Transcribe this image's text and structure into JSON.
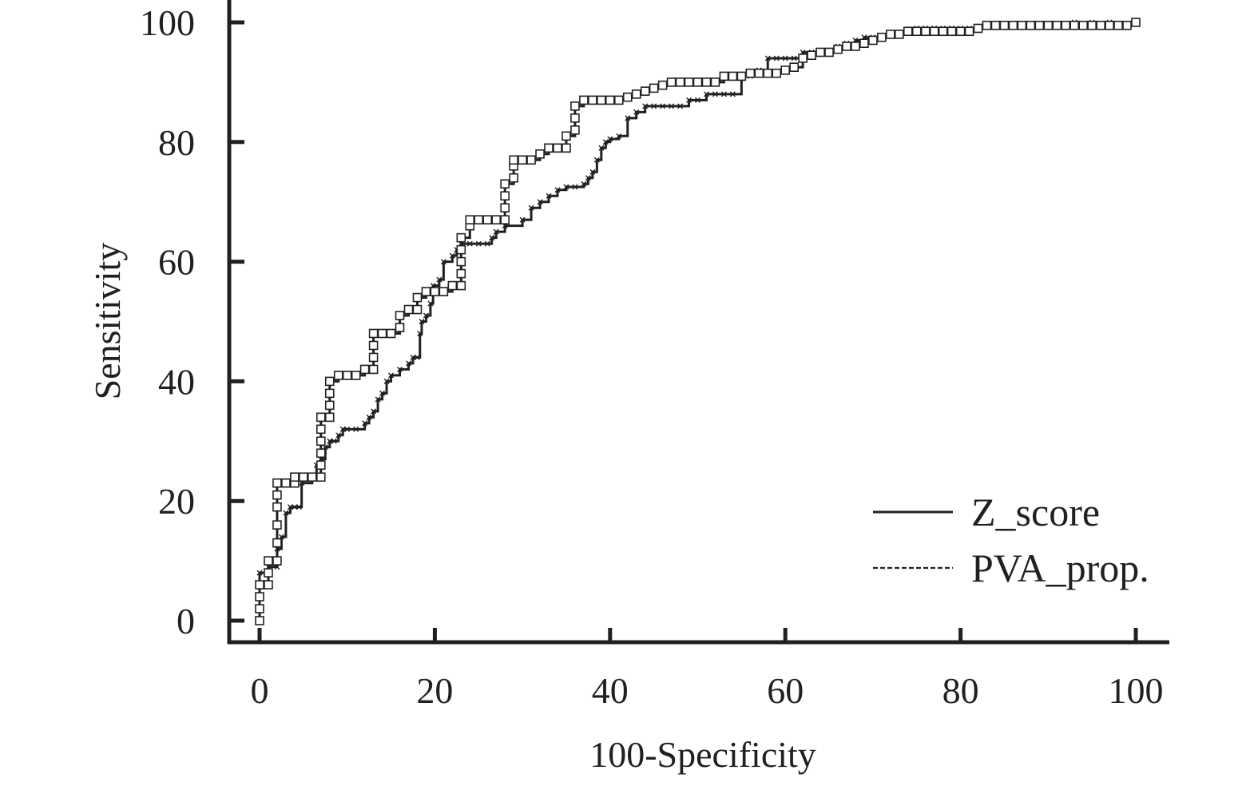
{
  "chart_data": {
    "type": "line",
    "title": "",
    "xlabel": "100-Specificity",
    "ylabel": "Sensitivity",
    "xlim": [
      0,
      100
    ],
    "ylim": [
      0,
      100
    ],
    "grid": false,
    "legend_position": "bottom-right",
    "x_ticks": [
      "0",
      "20",
      "40",
      "60",
      "80",
      "100"
    ],
    "y_ticks": [
      "0",
      "20",
      "40",
      "60",
      "80",
      "100"
    ],
    "series": [
      {
        "name": "Z_score",
        "line_style": "solid",
        "marker": "x",
        "color": "#231f20",
        "points": [
          [
            0,
            0
          ],
          [
            0,
            8
          ],
          [
            1,
            8
          ],
          [
            1,
            9
          ],
          [
            2,
            9
          ],
          [
            2,
            12
          ],
          [
            2.5,
            14
          ],
          [
            3,
            18
          ],
          [
            3.5,
            19
          ],
          [
            4,
            19
          ],
          [
            4.5,
            19
          ],
          [
            4.8,
            23
          ],
          [
            6,
            24
          ],
          [
            6.5,
            26
          ],
          [
            7,
            27
          ],
          [
            7.5,
            29
          ],
          [
            8,
            30
          ],
          [
            8.5,
            30
          ],
          [
            9,
            31
          ],
          [
            9.5,
            32
          ],
          [
            10,
            32
          ],
          [
            11,
            32
          ],
          [
            12,
            33
          ],
          [
            12.5,
            34
          ],
          [
            13,
            35
          ],
          [
            13.5,
            37
          ],
          [
            14,
            38
          ],
          [
            14.5,
            40
          ],
          [
            15,
            41
          ],
          [
            16,
            42
          ],
          [
            17,
            43
          ],
          [
            17.5,
            44
          ],
          [
            18,
            44
          ],
          [
            18.3,
            48
          ],
          [
            18.5,
            50
          ],
          [
            19,
            51
          ],
          [
            19.5,
            53
          ],
          [
            19.8,
            56
          ],
          [
            20.5,
            57
          ],
          [
            21,
            60
          ],
          [
            22,
            61
          ],
          [
            22.5,
            62
          ],
          [
            23,
            63
          ],
          [
            24,
            63
          ],
          [
            25,
            63
          ],
          [
            26,
            63
          ],
          [
            26.5,
            64
          ],
          [
            27,
            65
          ],
          [
            28,
            66
          ],
          [
            30,
            67
          ],
          [
            31,
            69
          ],
          [
            32,
            70
          ],
          [
            33,
            71
          ],
          [
            34,
            72
          ],
          [
            35,
            72.5
          ],
          [
            36,
            72.5
          ],
          [
            37,
            73
          ],
          [
            37.5,
            74
          ],
          [
            38,
            75
          ],
          [
            38.5,
            77
          ],
          [
            39,
            79
          ],
          [
            39.5,
            80
          ],
          [
            40,
            80.5
          ],
          [
            41,
            81
          ],
          [
            42,
            84
          ],
          [
            43,
            85
          ],
          [
            44,
            86
          ],
          [
            45,
            86
          ],
          [
            46,
            86
          ],
          [
            47,
            86
          ],
          [
            48,
            86
          ],
          [
            49,
            87
          ],
          [
            50,
            87
          ],
          [
            51,
            88
          ],
          [
            52,
            88
          ],
          [
            53,
            88
          ],
          [
            54,
            88
          ],
          [
            55,
            91
          ],
          [
            56,
            91
          ],
          [
            57,
            92
          ],
          [
            58,
            94
          ],
          [
            59,
            94
          ],
          [
            60,
            94
          ],
          [
            61,
            94
          ],
          [
            62,
            95
          ],
          [
            63,
            95
          ],
          [
            64,
            95
          ],
          [
            65,
            95
          ],
          [
            66,
            96
          ],
          [
            67,
            96.5
          ],
          [
            68,
            97
          ],
          [
            69,
            97.5
          ],
          [
            70,
            97.5
          ],
          [
            71,
            97.5
          ],
          [
            72,
            98
          ],
          [
            73,
            98
          ],
          [
            74,
            98.5
          ],
          [
            75,
            99
          ],
          [
            76,
            99
          ],
          [
            77,
            99
          ],
          [
            78,
            99
          ],
          [
            79,
            99
          ],
          [
            80,
            99
          ],
          [
            81,
            99
          ],
          [
            82,
            99
          ],
          [
            83,
            99.5
          ],
          [
            84,
            99.5
          ],
          [
            85,
            99.5
          ],
          [
            86,
            99.5
          ],
          [
            87,
            99.5
          ],
          [
            88,
            99.5
          ],
          [
            89,
            99.5
          ],
          [
            90,
            99.5
          ],
          [
            91,
            99.5
          ],
          [
            92,
            99.5
          ],
          [
            93,
            100
          ],
          [
            95,
            100
          ],
          [
            97,
            100
          ],
          [
            100,
            100
          ]
        ]
      },
      {
        "name": "PVA_prop.",
        "line_style": "dashed",
        "marker": "square",
        "color": "#231f20",
        "points": [
          [
            0,
            0
          ],
          [
            0,
            2
          ],
          [
            0,
            4
          ],
          [
            0,
            6
          ],
          [
            1,
            6
          ],
          [
            1,
            8
          ],
          [
            1,
            10
          ],
          [
            2,
            10
          ],
          [
            2,
            13
          ],
          [
            2,
            16
          ],
          [
            2,
            19
          ],
          [
            2,
            21
          ],
          [
            2,
            23
          ],
          [
            3,
            23
          ],
          [
            4,
            23
          ],
          [
            4,
            24
          ],
          [
            5,
            24
          ],
          [
            6,
            24
          ],
          [
            7,
            24
          ],
          [
            7,
            26
          ],
          [
            7,
            28
          ],
          [
            7,
            30
          ],
          [
            7,
            32
          ],
          [
            7,
            34
          ],
          [
            8,
            34
          ],
          [
            8,
            36
          ],
          [
            8,
            38
          ],
          [
            8,
            40
          ],
          [
            9,
            41
          ],
          [
            10,
            41
          ],
          [
            11,
            41
          ],
          [
            12,
            42
          ],
          [
            13,
            42
          ],
          [
            13,
            44
          ],
          [
            13,
            46
          ],
          [
            13,
            48
          ],
          [
            14,
            48
          ],
          [
            15,
            48
          ],
          [
            16,
            49
          ],
          [
            16,
            51
          ],
          [
            17,
            52
          ],
          [
            18,
            52
          ],
          [
            18,
            54
          ],
          [
            19,
            55
          ],
          [
            20,
            55
          ],
          [
            21,
            55
          ],
          [
            22,
            56
          ],
          [
            23,
            56
          ],
          [
            23,
            58
          ],
          [
            23,
            60
          ],
          [
            23,
            62
          ],
          [
            23,
            64
          ],
          [
            24,
            66
          ],
          [
            24,
            67
          ],
          [
            25,
            67
          ],
          [
            26,
            67
          ],
          [
            27,
            67
          ],
          [
            28,
            67
          ],
          [
            28,
            69
          ],
          [
            28,
            71
          ],
          [
            28,
            73
          ],
          [
            29,
            74
          ],
          [
            29,
            76
          ],
          [
            29,
            77
          ],
          [
            30,
            77
          ],
          [
            31,
            77
          ],
          [
            32,
            78
          ],
          [
            33,
            79
          ],
          [
            34,
            79
          ],
          [
            35,
            79
          ],
          [
            35,
            81
          ],
          [
            36,
            82
          ],
          [
            36,
            84
          ],
          [
            36,
            86
          ],
          [
            37,
            87
          ],
          [
            38,
            87
          ],
          [
            39,
            87
          ],
          [
            40,
            87
          ],
          [
            41,
            87
          ],
          [
            42,
            87.5
          ],
          [
            43,
            88
          ],
          [
            44,
            88.5
          ],
          [
            45,
            89
          ],
          [
            46,
            89.5
          ],
          [
            47,
            90
          ],
          [
            48,
            90
          ],
          [
            49,
            90
          ],
          [
            50,
            90
          ],
          [
            51,
            90
          ],
          [
            52,
            90
          ],
          [
            53,
            91
          ],
          [
            54,
            91
          ],
          [
            55,
            91
          ],
          [
            56,
            91.5
          ],
          [
            57,
            91.5
          ],
          [
            58,
            91.5
          ],
          [
            59,
            91.5
          ],
          [
            60,
            92
          ],
          [
            61,
            92.5
          ],
          [
            62,
            94
          ],
          [
            63,
            94.5
          ],
          [
            64,
            95
          ],
          [
            65,
            95
          ],
          [
            66,
            95.5
          ],
          [
            67,
            96
          ],
          [
            68,
            96
          ],
          [
            69,
            96.5
          ],
          [
            70,
            97
          ],
          [
            71,
            97.5
          ],
          [
            72,
            98
          ],
          [
            73,
            98
          ],
          [
            74,
            98.5
          ],
          [
            75,
            98.5
          ],
          [
            76,
            98.5
          ],
          [
            77,
            98.5
          ],
          [
            78,
            98.5
          ],
          [
            79,
            98.5
          ],
          [
            80,
            98.5
          ],
          [
            81,
            98.5
          ],
          [
            82,
            99
          ],
          [
            83,
            99.5
          ],
          [
            84,
            99.5
          ],
          [
            85,
            99.5
          ],
          [
            86,
            99.5
          ],
          [
            87,
            99.5
          ],
          [
            88,
            99.5
          ],
          [
            89,
            99.5
          ],
          [
            90,
            99.5
          ],
          [
            91,
            99.5
          ],
          [
            92,
            99.5
          ],
          [
            93,
            99.5
          ],
          [
            94,
            99.5
          ],
          [
            95,
            99.5
          ],
          [
            96,
            99.5
          ],
          [
            97,
            99.5
          ],
          [
            98,
            99.5
          ],
          [
            99,
            99.5
          ],
          [
            100,
            100
          ]
        ]
      }
    ]
  }
}
